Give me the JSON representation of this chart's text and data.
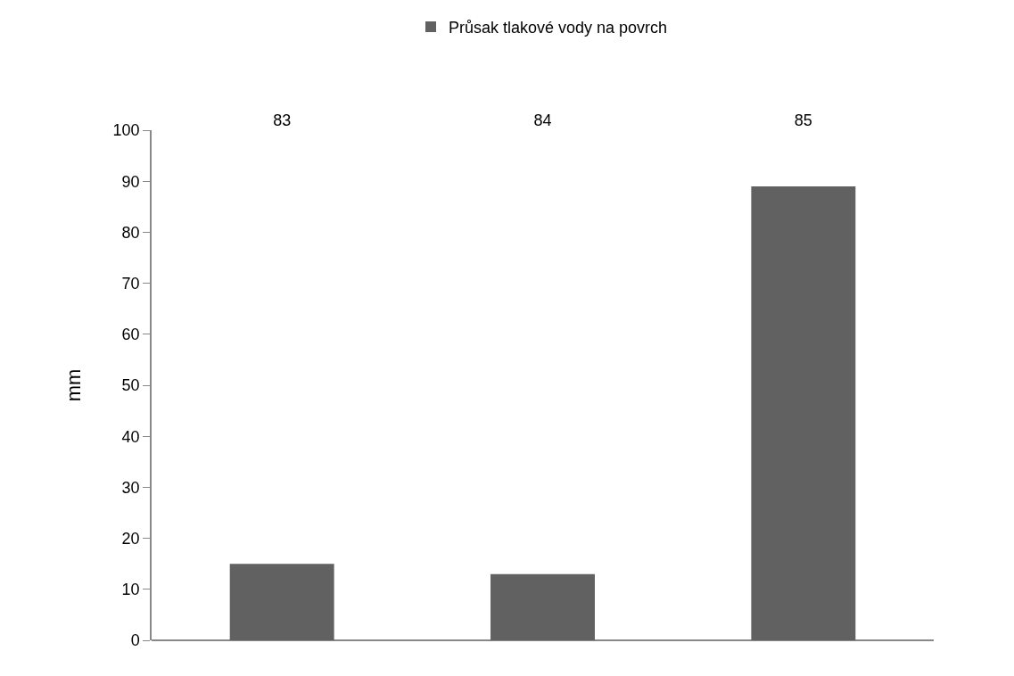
{
  "chart_data": {
    "type": "bar",
    "categories": [
      "83",
      "84",
      "85"
    ],
    "series": [
      {
        "name": "Průsak tlakové vody na povrch",
        "color": "#616161",
        "values": [
          15,
          13,
          89
        ]
      }
    ],
    "ylabel": "mm",
    "ylim": [
      0,
      100
    ],
    "yticks": [
      0,
      10,
      20,
      30,
      40,
      50,
      60,
      70,
      80,
      90,
      100
    ],
    "legend": "top"
  }
}
